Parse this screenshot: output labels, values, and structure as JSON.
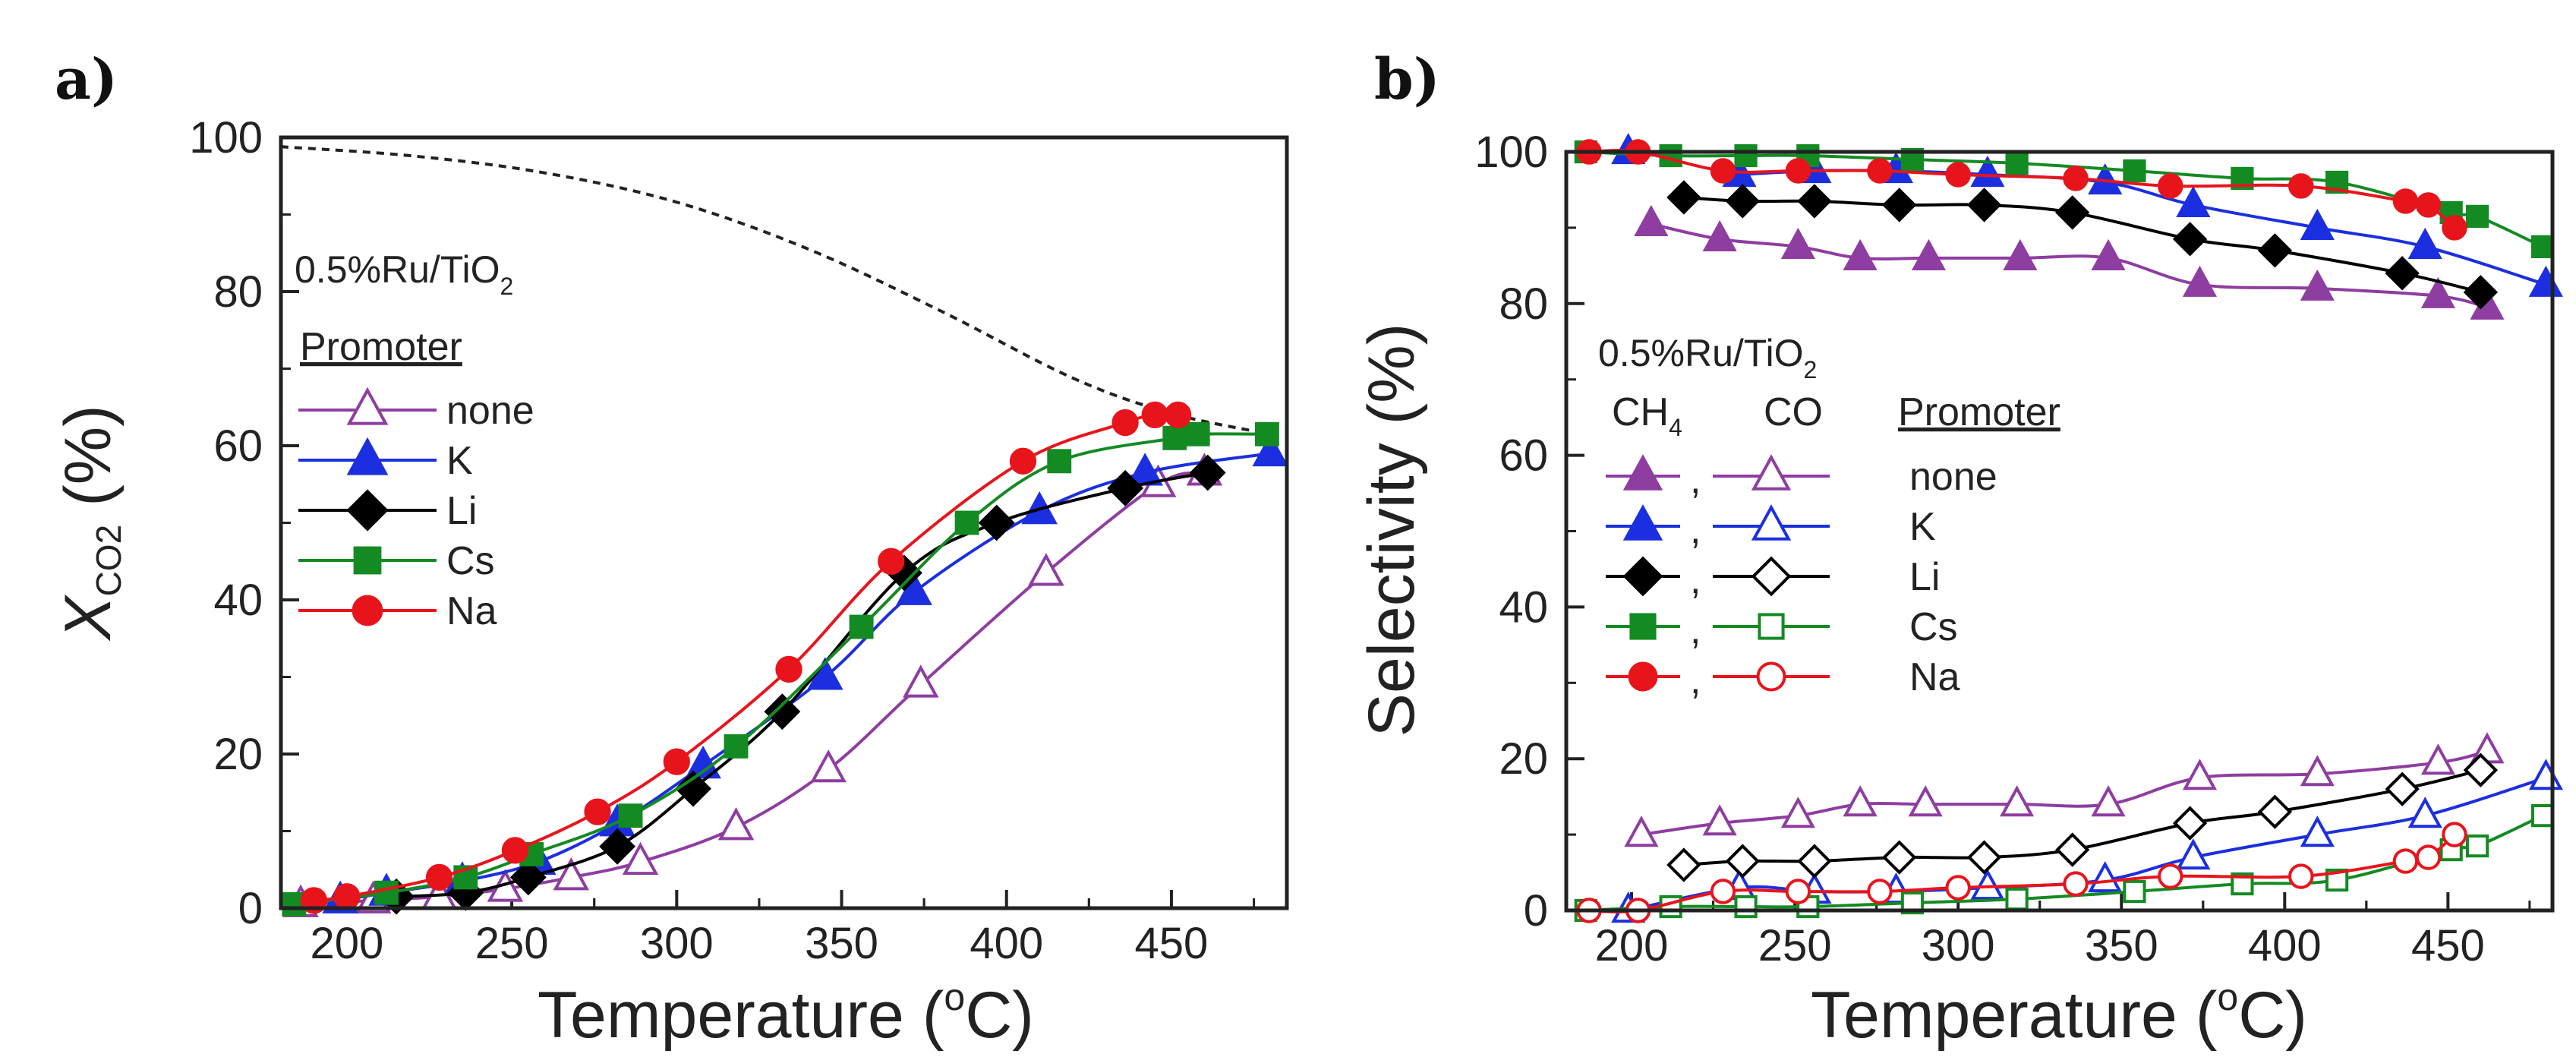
{
  "chart_data": [
    {
      "panel_label": "a)",
      "type": "line",
      "annotation": {
        "main": "0.5%Ru/TiO",
        "sub": "2"
      },
      "xlabel": "Temperature (°C)",
      "xlabel_parts": {
        "pre": "Temperature (",
        "sup": "o",
        "post": "C)"
      },
      "ylabel": "X_CO2 (%)",
      "ylabel_parts": {
        "main": "X",
        "sub": "CO2",
        "post": " (%)"
      },
      "xlim": [
        180,
        485
      ],
      "ylim": [
        0,
        100
      ],
      "xticks": [
        "200",
        "250",
        "300",
        "350",
        "400",
        "450"
      ],
      "yticks": [
        "0",
        "20",
        "40",
        "60",
        "80",
        "100"
      ],
      "legend_title": "Promoter",
      "equilibrium_curve": {
        "style": "dashed",
        "x": [
          180,
          220,
          260,
          300,
          340,
          380,
          420,
          450,
          480
        ],
        "y": [
          98.8,
          97.6,
          95.4,
          91.6,
          85.5,
          77.5,
          68.8,
          64.2,
          61.5
        ]
      },
      "series": [
        {
          "name": "none",
          "color": "#8e3da0",
          "marker": "triangle",
          "filled": false,
          "x": [
            186,
            208,
            228,
            248,
            268,
            289,
            318,
            346,
            374,
            412,
            446,
            460
          ],
          "y": [
            0.5,
            1.0,
            1.5,
            2.5,
            4.0,
            6.0,
            10.5,
            18.0,
            29.0,
            43.5,
            55.0,
            56.5
          ]
        },
        {
          "name": "K",
          "color": "#1b2fe0",
          "marker": "triangle",
          "filled": true,
          "x": [
            198,
            212,
            235,
            258,
            282,
            308,
            345,
            372,
            410,
            442,
            480
          ],
          "y": [
            1.0,
            2.0,
            3.5,
            6.0,
            11.0,
            18.5,
            30.0,
            41.0,
            51.5,
            56.5,
            59.0
          ]
        },
        {
          "name": "Li",
          "color": "#000000",
          "marker": "diamond",
          "filled": true,
          "x": [
            215,
            236,
            255,
            282,
            305,
            332,
            369,
            397,
            436,
            461
          ],
          "y": [
            1.5,
            2.0,
            4.0,
            8.0,
            15.5,
            25.5,
            43.5,
            50.0,
            54.5,
            56.5
          ]
        },
        {
          "name": "Cs",
          "color": "#148a23",
          "marker": "square",
          "filled": true,
          "x": [
            184,
            212,
            236,
            256,
            286,
            318,
            356,
            388,
            416,
            451,
            458,
            479
          ],
          "y": [
            0.5,
            2.0,
            4.0,
            7.0,
            12.0,
            21.0,
            36.5,
            50.0,
            58.0,
            61.0,
            61.5,
            61.5
          ]
        },
        {
          "name": "Na",
          "color": "#e8141c",
          "marker": "circle",
          "filled": true,
          "x": [
            190,
            200,
            228,
            251,
            276,
            300,
            334,
            365,
            405,
            436,
            445,
            452
          ],
          "y": [
            1.0,
            1.5,
            4.0,
            7.5,
            12.5,
            19.0,
            31.0,
            45.0,
            58.0,
            63.0,
            64.0,
            64.0
          ]
        }
      ]
    },
    {
      "panel_label": "b)",
      "type": "line",
      "annotation": {
        "main": "0.5%Ru/TiO",
        "sub": "2"
      },
      "xlabel": "Temperature (°C)",
      "xlabel_parts": {
        "pre": "Temperature (",
        "sup": "o",
        "post": "C)"
      },
      "ylabel": "Selectivity (%)",
      "xlim": [
        180,
        482
      ],
      "ylim": [
        0,
        100
      ],
      "xticks": [
        "200",
        "250",
        "300",
        "350",
        "400",
        "450"
      ],
      "yticks": [
        "0",
        "20",
        "40",
        "60",
        "80",
        "100"
      ],
      "legend_headers": {
        "ch4": "CH",
        "ch4_sub": "4",
        "co": "CO",
        "promoter": "Promoter"
      },
      "legend_separator": ",",
      "series": [
        {
          "name": "none",
          "color": "#8e3da0",
          "marker": "triangle",
          "ch4": {
            "x": [
              206,
              227,
              251,
              270,
              291,
              319,
              346,
              374,
              410,
              447,
              462
            ],
            "y": [
              90.5,
              88.5,
              87.5,
              86.0,
              86.0,
              86.0,
              86.0,
              82.5,
              82.0,
              81.0,
              79.5
            ]
          },
          "co": {
            "x": [
              203,
              227,
              251,
              270,
              290,
              318,
              346,
              374,
              410,
              447,
              462
            ],
            "y": [
              10.0,
              11.5,
              12.5,
              14.0,
              14.0,
              14.0,
              14.0,
              17.5,
              18.0,
              19.5,
              21.0
            ]
          }
        },
        {
          "name": "K",
          "color": "#1b2fe0",
          "marker": "triangle",
          "ch4": {
            "x": [
              199,
              233,
              256,
              281,
              309,
              345,
              372,
              410,
              443,
              480
            ],
            "y": [
              100.0,
              97.0,
              97.5,
              97.5,
              97.0,
              96.0,
              93.0,
              90.0,
              87.5,
              82.5
            ]
          },
          "co": {
            "x": [
              199,
              233,
              256,
              281,
              309,
              345,
              372,
              410,
              443,
              480
            ],
            "y": [
              0.0,
              3.0,
              2.5,
              2.5,
              3.0,
              4.0,
              7.0,
              10.0,
              12.5,
              17.5
            ]
          },
          "ch4_start": 1
        },
        {
          "name": "Li",
          "color": "#000000",
          "marker": "diamond",
          "ch4": {
            "x": [
              216,
              234,
              256,
              282,
              308,
              335,
              371,
              397,
              436,
              460
            ],
            "y": [
              94.0,
              93.5,
              93.5,
              93.0,
              93.0,
              92.0,
              88.5,
              87.0,
              84.0,
              81.5
            ]
          },
          "co": {
            "x": [
              216,
              234,
              256,
              282,
              308,
              335,
              371,
              397,
              436,
              460
            ],
            "y": [
              6.0,
              6.5,
              6.5,
              7.0,
              7.0,
              8.0,
              11.5,
              13.0,
              16.0,
              18.5
            ]
          }
        },
        {
          "name": "Cs",
          "color": "#148a23",
          "marker": "square",
          "ch4": {
            "x": [
              186,
              212,
              235,
              254,
              286,
              318,
              354,
              387,
              416,
              451,
              459,
              479
            ],
            "y": [
              100.0,
              99.5,
              99.5,
              99.5,
              99.0,
              98.5,
              97.5,
              96.5,
              96.0,
              92.0,
              91.5,
              87.5
            ]
          },
          "co": {
            "x": [
              186,
              212,
              235,
              254,
              286,
              318,
              354,
              387,
              416,
              451,
              459,
              479
            ],
            "y": [
              0.0,
              0.5,
              0.5,
              0.5,
              1.0,
              1.5,
              2.5,
              3.5,
              4.0,
              8.0,
              8.5,
              12.5
            ]
          }
        },
        {
          "name": "Na",
          "color": "#e8141c",
          "marker": "circle",
          "ch4": {
            "x": [
              187,
              202,
              228,
              251,
              276,
              300,
              336,
              365,
              405,
              437,
              444,
              452
            ],
            "y": [
              100.0,
              100.0,
              97.5,
              97.5,
              97.5,
              97.0,
              96.5,
              95.5,
              95.5,
              93.5,
              93.0,
              90.0
            ]
          },
          "co": {
            "x": [
              187,
              202,
              228,
              251,
              276,
              300,
              336,
              365,
              405,
              437,
              444,
              452
            ],
            "y": [
              0.0,
              0.0,
              2.5,
              2.5,
              2.5,
              3.0,
              3.5,
              4.5,
              4.5,
              6.5,
              7.0,
              10.0
            ]
          }
        }
      ]
    }
  ]
}
